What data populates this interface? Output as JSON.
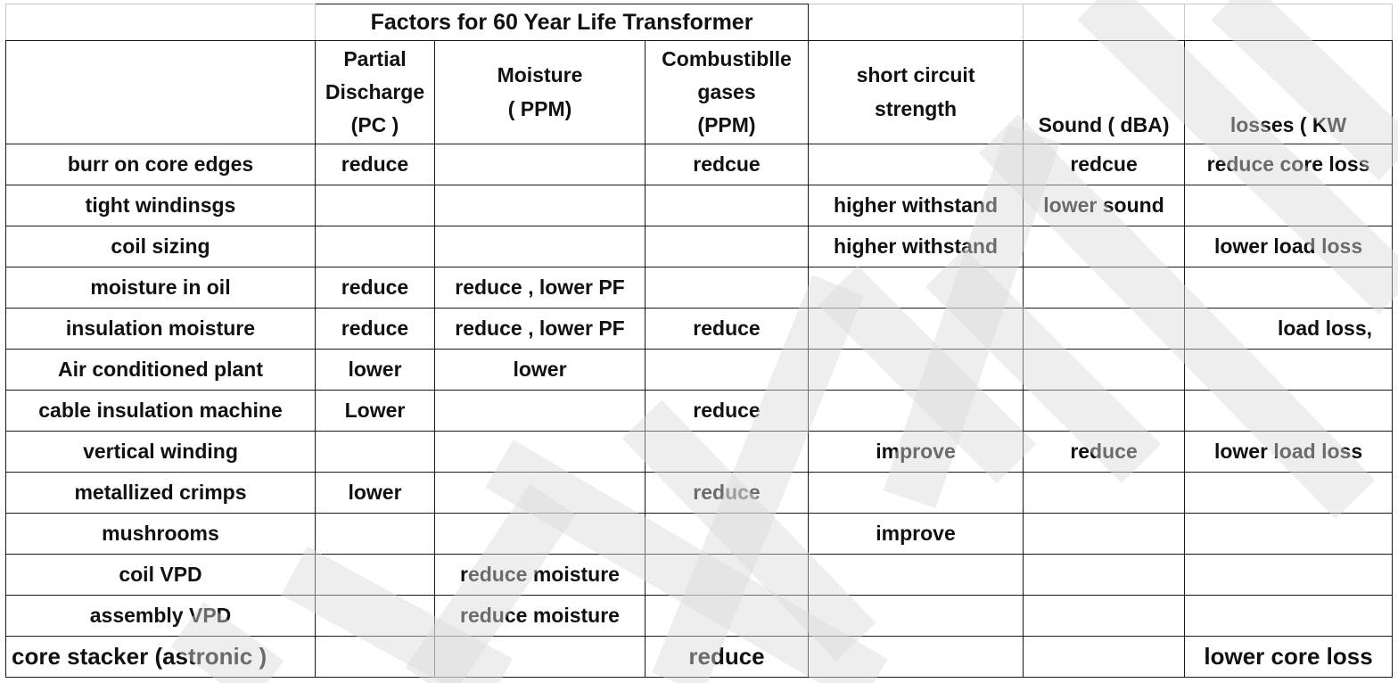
{
  "table": {
    "title": "Factors for 60 Year Life Transformer",
    "headers": [
      "",
      "Partial\nDischarge\n(PC )",
      "Moisture\n( PPM)",
      "Combustiblle\ngases\n(PPM)",
      "short circuit\nstrength",
      "Sound ( dBA)",
      "losses ( KW"
    ],
    "rows": [
      [
        "burr on core edges",
        "reduce",
        "",
        "redcue",
        "",
        "redcue",
        "reduce core loss"
      ],
      [
        "tight windinsgs",
        "",
        "",
        "",
        "higher withstand",
        "lower sound",
        ""
      ],
      [
        "coil sizing",
        "",
        "",
        "",
        "higher withstand",
        "",
        "lower load loss"
      ],
      [
        "moisture in oil",
        "reduce",
        "reduce , lower PF",
        "",
        "",
        "",
        ""
      ],
      [
        "insulation moisture",
        "reduce",
        "reduce , lower PF",
        "reduce",
        "",
        "",
        "load loss,"
      ],
      [
        "Air conditioned plant",
        "lower",
        "lower",
        "",
        "",
        "",
        ""
      ],
      [
        "cable insulation machine",
        "Lower",
        "",
        "reduce",
        "",
        "",
        ""
      ],
      [
        "vertical winding",
        "",
        "",
        "",
        "improve",
        "reduce",
        "lower load loss"
      ],
      [
        "metallized crimps",
        "lower",
        "",
        "reduce",
        "",
        "",
        ""
      ],
      [
        "mushrooms",
        "",
        "",
        "",
        "improve",
        "",
        ""
      ],
      [
        "coil VPD",
        "",
        "reduce moisture",
        "",
        "",
        "",
        ""
      ],
      [
        "assembly VPD",
        "",
        "reduce moisture",
        "",
        "",
        "",
        ""
      ],
      [
        "core stacker (astronic )",
        "",
        "",
        "reduce",
        "",
        "",
        "lower core loss"
      ]
    ]
  },
  "watermark": {
    "color": "#d9d9d9"
  }
}
